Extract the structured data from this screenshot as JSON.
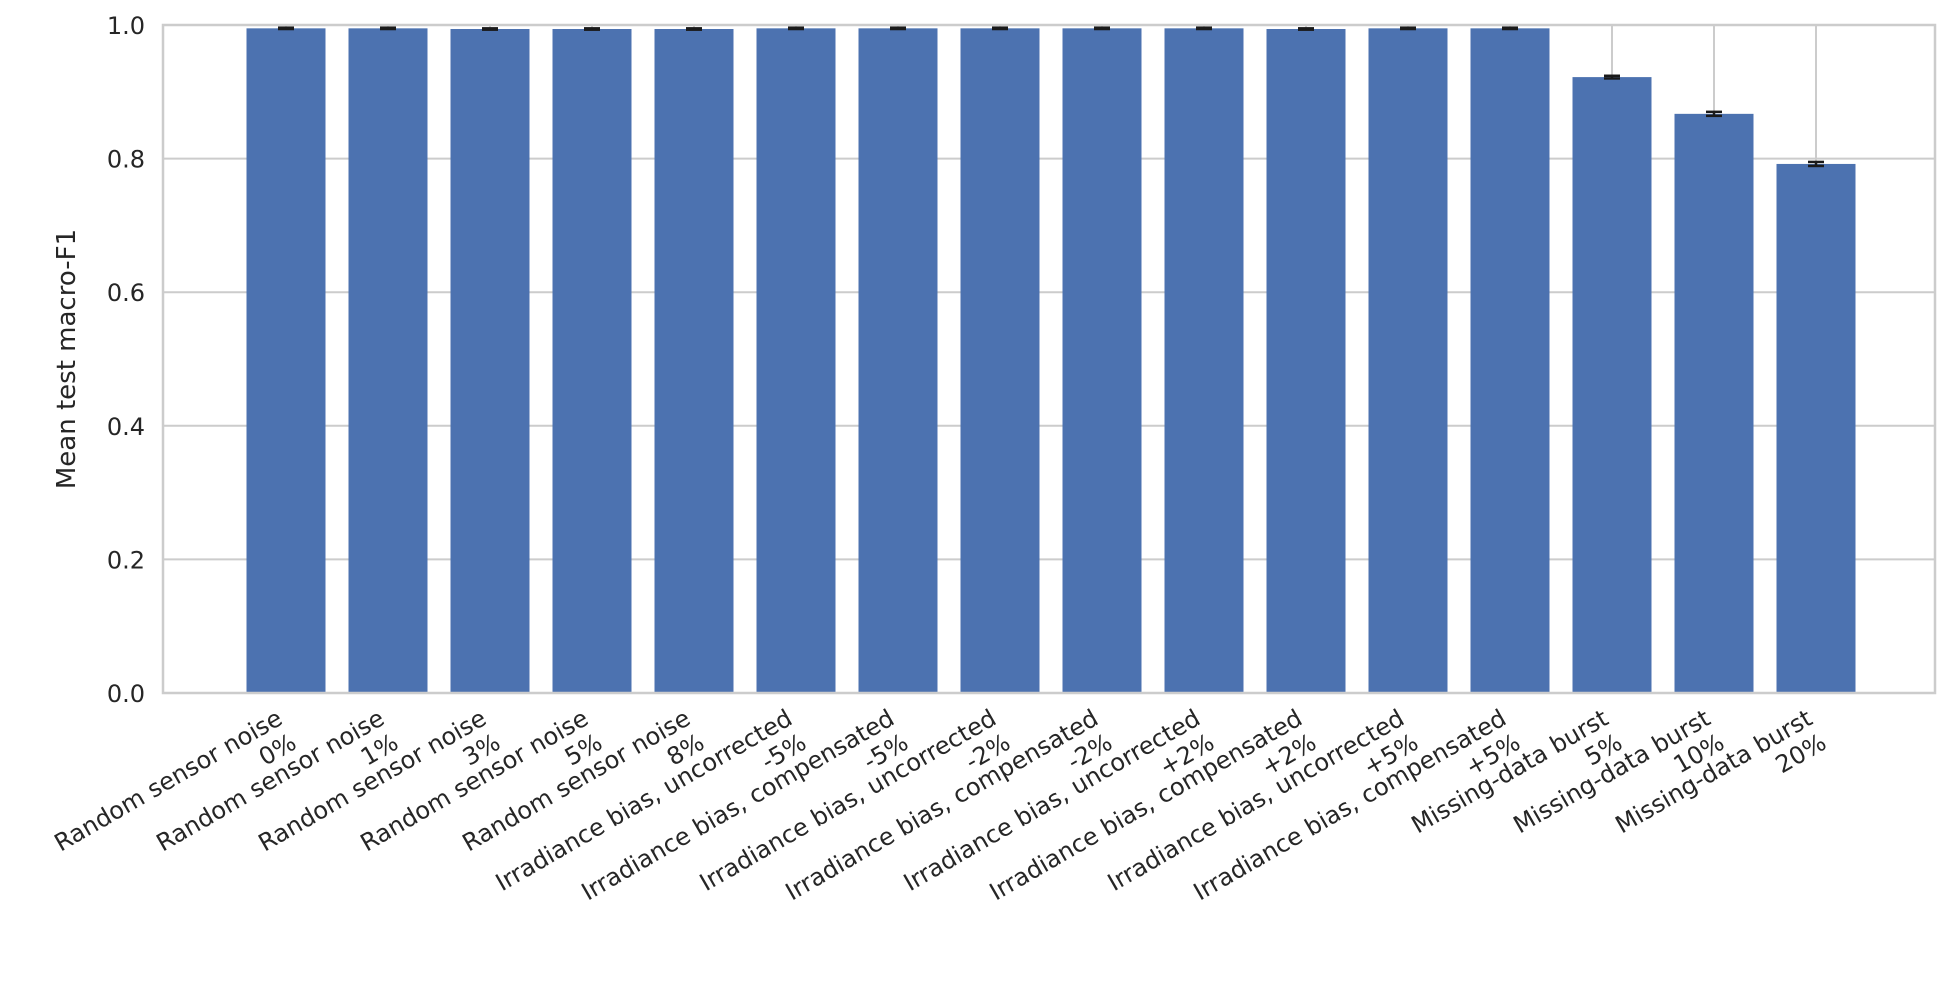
{
  "chart_data": {
    "type": "bar",
    "title": "",
    "xlabel": "",
    "ylabel": "Mean test macro-F1",
    "ylim": [
      0,
      1.0
    ],
    "yticks": [
      "0.0",
      "0.2",
      "0.4",
      "0.6",
      "0.8",
      "1.0"
    ],
    "grid": true,
    "bar_color": "#4c72b0",
    "categories": [
      [
        "Random sensor noise",
        "0%"
      ],
      [
        "Random sensor noise",
        "1%"
      ],
      [
        "Random sensor noise",
        "3%"
      ],
      [
        "Random sensor noise",
        "5%"
      ],
      [
        "Random sensor noise",
        "8%"
      ],
      [
        "Irradiance bias, uncorrected",
        "-5%"
      ],
      [
        "Irradiance bias, compensated",
        "-5%"
      ],
      [
        "Irradiance bias, uncorrected",
        "-2%"
      ],
      [
        "Irradiance bias, compensated",
        "-2%"
      ],
      [
        "Irradiance bias, uncorrected",
        "+2%"
      ],
      [
        "Irradiance bias, compensated",
        "+2%"
      ],
      [
        "Irradiance bias, uncorrected",
        "+5%"
      ],
      [
        "Irradiance bias, compensated",
        "+5%"
      ],
      [
        "Missing-data burst",
        "5%"
      ],
      [
        "Missing-data burst",
        "10%"
      ],
      [
        "Missing-data burst",
        "20%"
      ]
    ],
    "values": [
      0.995,
      0.995,
      0.994,
      0.994,
      0.994,
      0.995,
      0.995,
      0.995,
      0.995,
      0.995,
      0.994,
      0.995,
      0.995,
      0.922,
      0.867,
      0.792
    ],
    "errors": [
      0.001,
      0.001,
      0.001,
      0.001,
      0.001,
      0.001,
      0.001,
      0.001,
      0.001,
      0.001,
      0.001,
      0.001,
      0.001,
      0.002,
      0.003,
      0.003
    ]
  }
}
